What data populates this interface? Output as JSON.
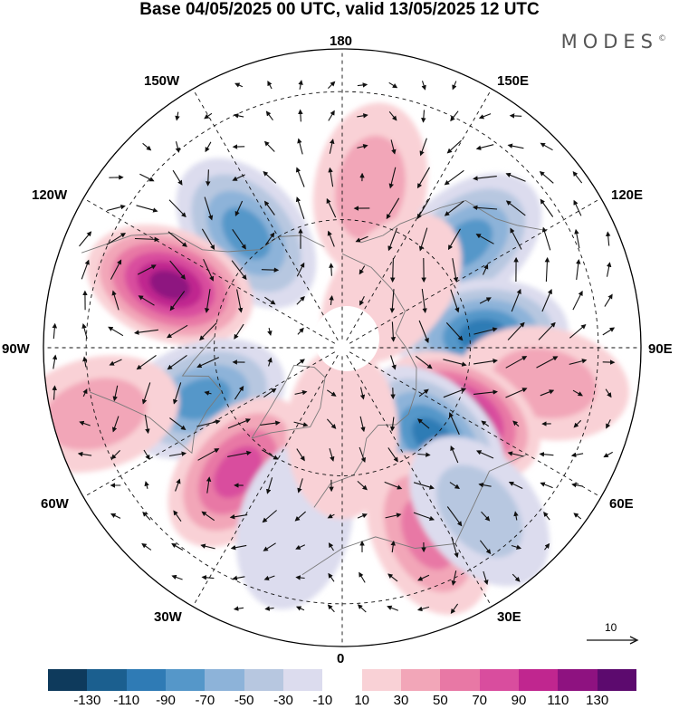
{
  "title": "Base 04/05/2025 00 UTC, valid 13/05/2025 12 UTC",
  "logo": {
    "text": "MODES",
    "mark": "©"
  },
  "longitude_labels": {
    "top": "180",
    "bottom": "0",
    "left": "90W",
    "right": "90E",
    "upper_left": "150W",
    "upper_right": "150E",
    "mid_upper_left": "120W",
    "mid_upper_right": "120E",
    "mid_lower_left": "60W",
    "mid_lower_right": "60E",
    "lower_left": "30W",
    "lower_right": "30E"
  },
  "vector_scale": {
    "label": "10"
  },
  "colorbar": {
    "colors": [
      "#0e3a5c",
      "#1b5f8f",
      "#2f7bb5",
      "#5597c9",
      "#8db3d9",
      "#b7c7e0",
      "#dcdcee",
      "#ffffff",
      "#f9d1d6",
      "#f2a6b8",
      "#e878a5",
      "#d94d9e",
      "#c0268f",
      "#8e1280",
      "#5c0a6e"
    ],
    "tick_labels": [
      "-130",
      "-110",
      "-90",
      "-70",
      "-50",
      "-30",
      "-10",
      "10",
      "30",
      "50",
      "70",
      "90",
      "110",
      "130"
    ]
  },
  "anomaly_centers": [
    {
      "lon": 170,
      "lat": 52,
      "value": 55
    },
    {
      "lon": -140,
      "lat": 55,
      "value": -85
    },
    {
      "lon": 130,
      "lat": 52,
      "value": -95
    },
    {
      "lon": -110,
      "lat": 47,
      "value": 125
    },
    {
      "lon": 95,
      "lat": 57,
      "value": -100
    },
    {
      "lon": 80,
      "lat": 42,
      "value": 40
    },
    {
      "lon": 60,
      "lat": 58,
      "value": 130
    },
    {
      "lon": 45,
      "lat": 60,
      "value": -115
    },
    {
      "lon": -70,
      "lat": 55,
      "value": -85
    },
    {
      "lon": -40,
      "lat": 52,
      "value": 85
    },
    {
      "lon": 25,
      "lat": 42,
      "value": 75
    },
    {
      "lon": 40,
      "lat": 40,
      "value": -55
    },
    {
      "lon": -75,
      "lat": 30,
      "value": 45
    },
    {
      "lon": 140,
      "lat": 72,
      "value": 35
    },
    {
      "lon": -15,
      "lat": 47,
      "value": -20
    },
    {
      "lon": 0,
      "lat": 70,
      "value": 15
    }
  ]
}
